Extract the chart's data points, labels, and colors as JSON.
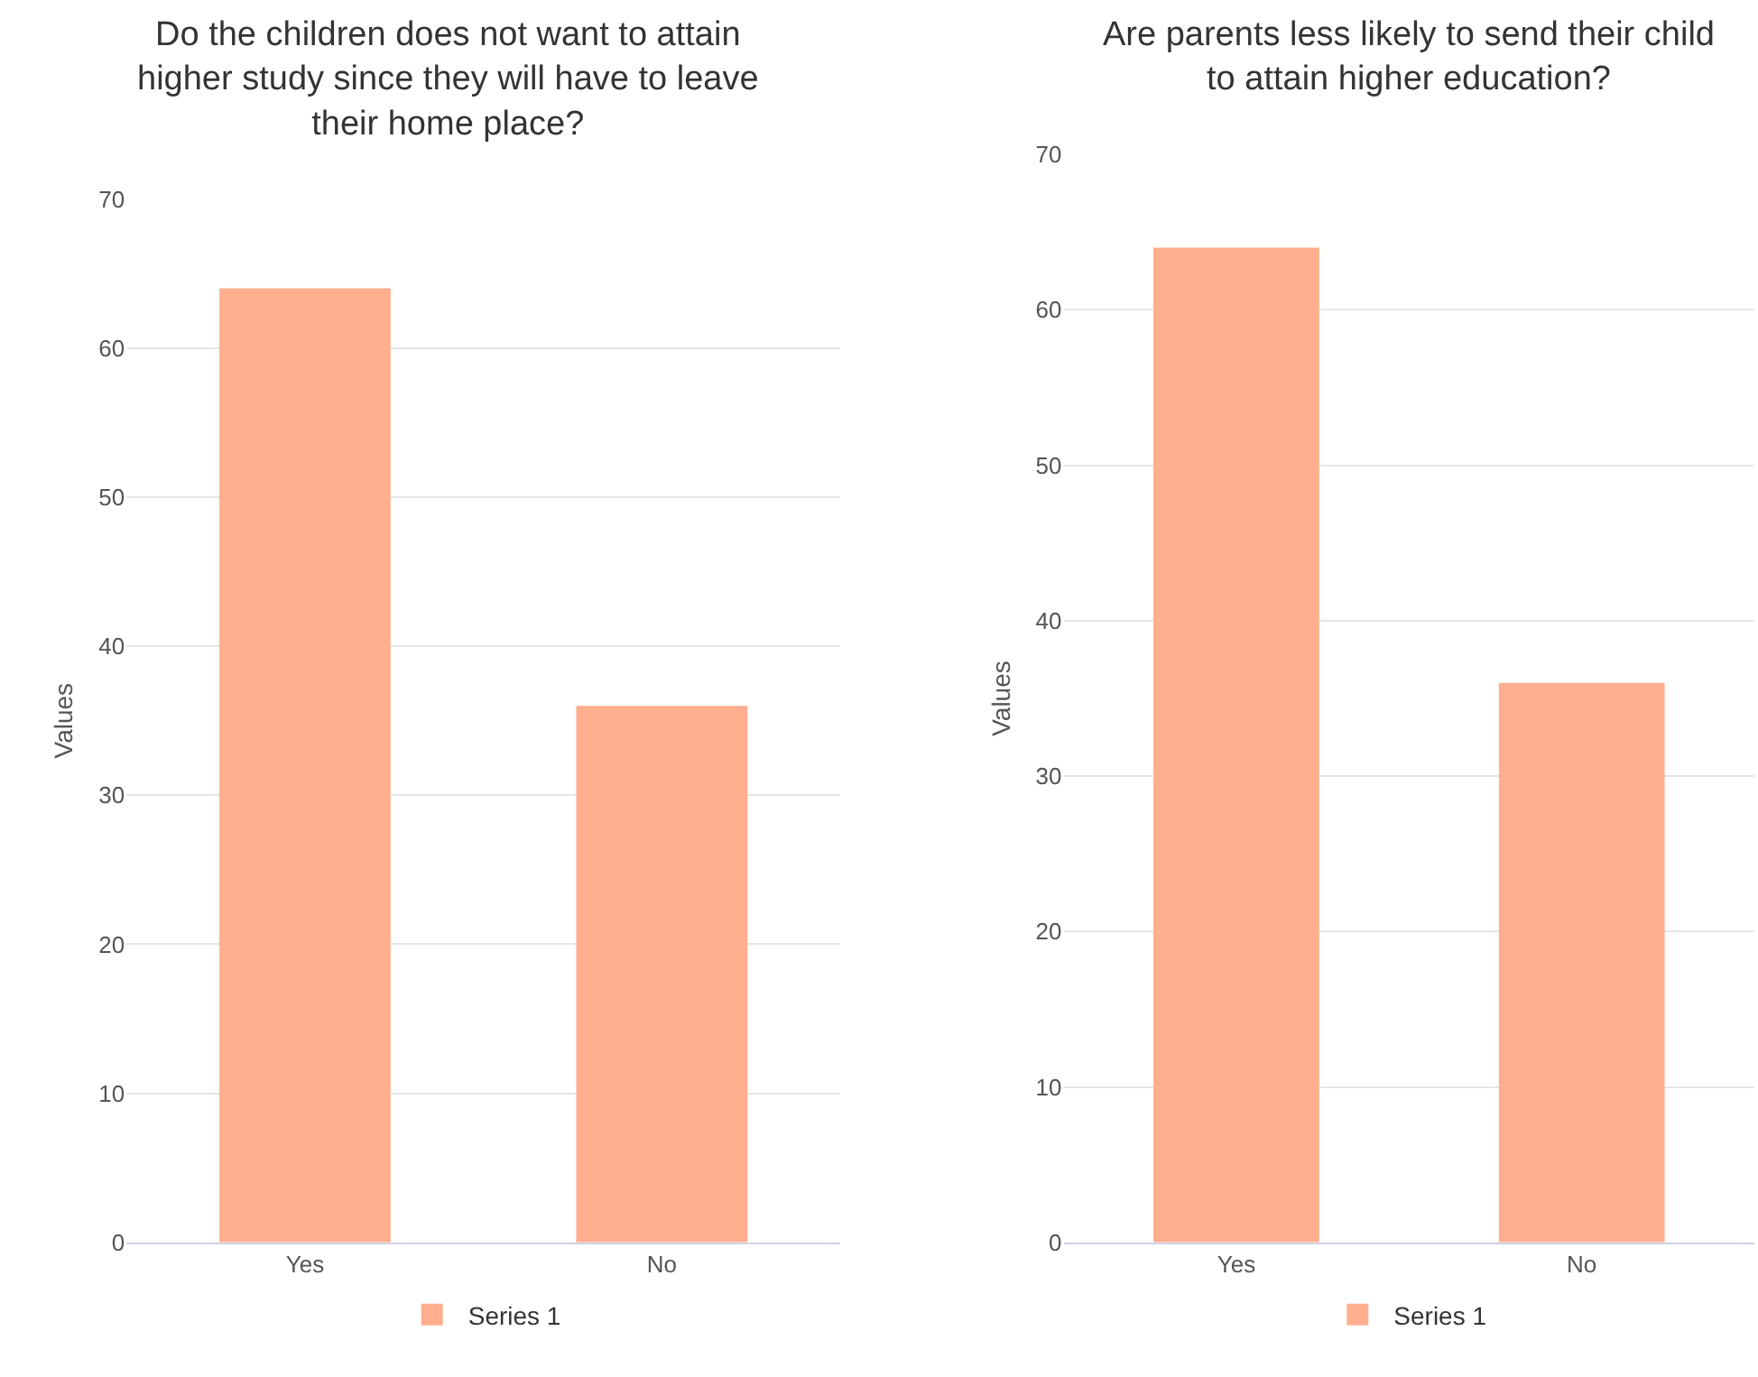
{
  "chart_data": [
    {
      "type": "bar",
      "title": "Do the children does not want to attain higher study since they will have to leave their home place?",
      "ylabel": "Values",
      "categories": [
        "Yes",
        "No"
      ],
      "series": [
        {
          "name": "Series 1",
          "color": "#ffae8e",
          "values": [
            64,
            36
          ]
        }
      ],
      "ylim": [
        0,
        70
      ],
      "yticks": [
        0,
        10,
        20,
        30,
        40,
        50,
        60,
        70
      ],
      "grid": "y",
      "legend": "bottom"
    },
    {
      "type": "bar",
      "title": "Are parents less likely to send their child to attain higher education?",
      "ylabel": "Values",
      "categories": [
        "Yes",
        "No"
      ],
      "series": [
        {
          "name": "Series 1",
          "color": "#ffae8e",
          "values": [
            64,
            36
          ]
        }
      ],
      "ylim": [
        0,
        70
      ],
      "yticks": [
        0,
        10,
        20,
        30,
        40,
        50,
        60,
        70
      ],
      "grid": "y",
      "legend": "bottom"
    }
  ]
}
